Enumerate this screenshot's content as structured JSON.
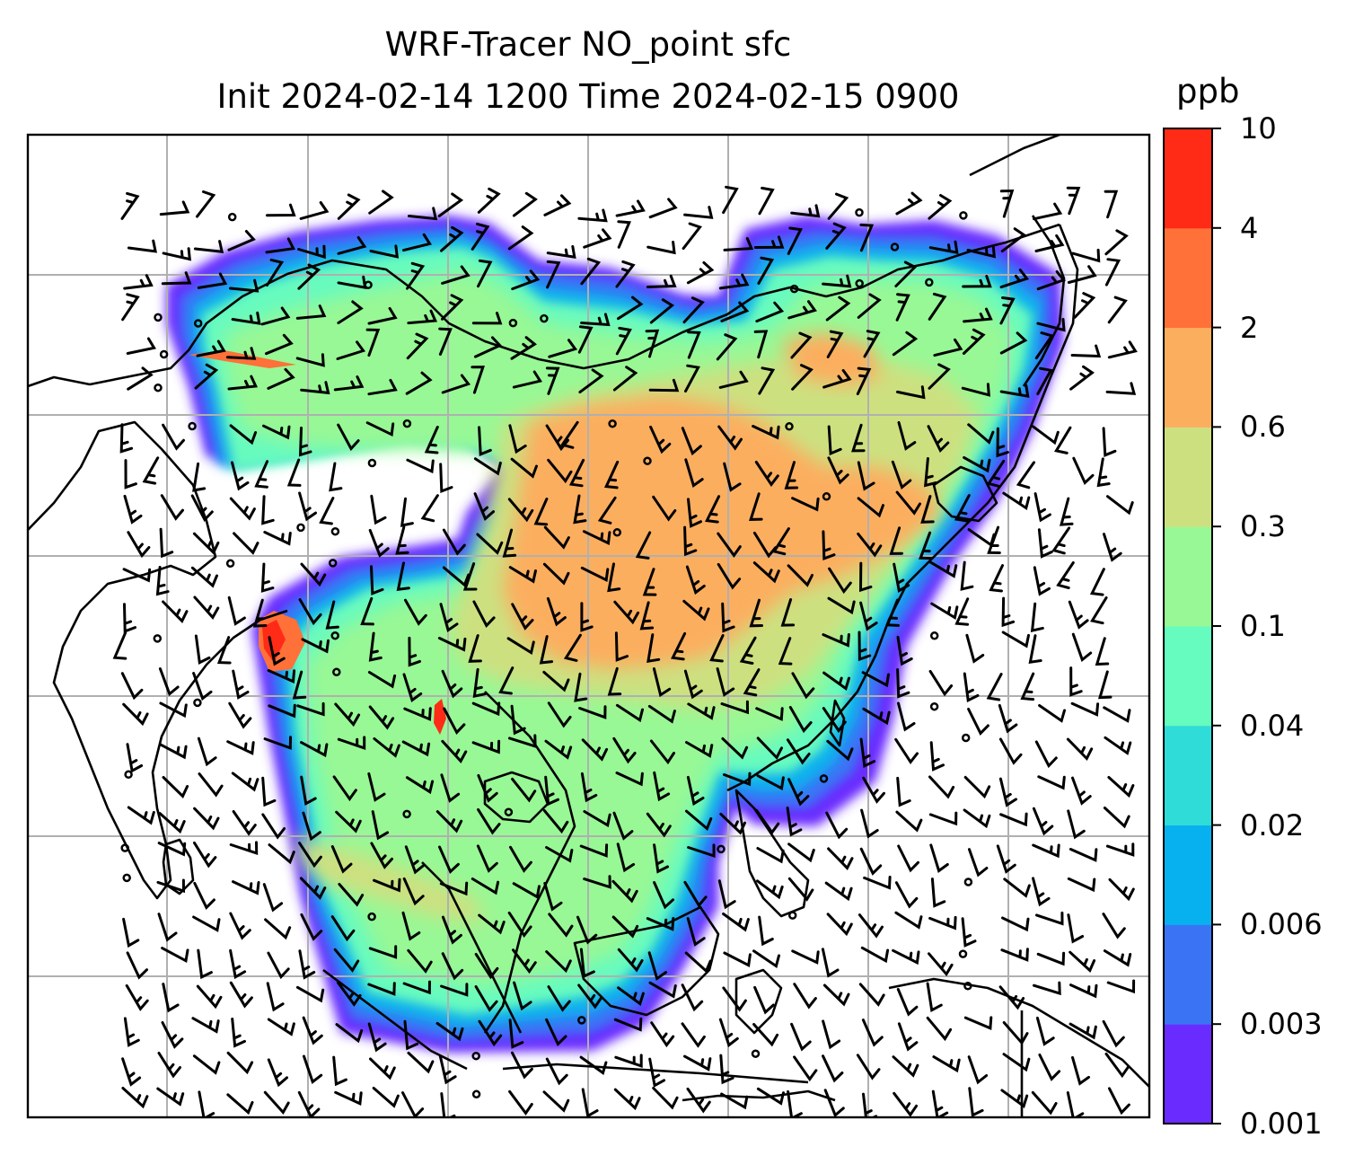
{
  "title": {
    "line1": "WRF-Tracer NO_point sfc",
    "line2": "Init 2024-02-14 1200 Time 2024-02-15 0900"
  },
  "colorbar": {
    "unit": "ppb",
    "levels": [
      "0.001",
      "0.003",
      "0.006",
      "0.02",
      "0.04",
      "0.1",
      "0.3",
      "0.6",
      "2",
      "4",
      "10"
    ],
    "colors": [
      "#6a2bff",
      "#3a74f5",
      "#07b0ee",
      "#2fdcd8",
      "#66fbbf",
      "#98f895",
      "#cde080",
      "#fcae5f",
      "#ff7138",
      "#ff2b17"
    ]
  },
  "map": {
    "type": "filled-contour with wind barbs",
    "background": "#ffffff",
    "coastline_color": "#000000",
    "gridline_color": "#b0b0b0"
  }
}
